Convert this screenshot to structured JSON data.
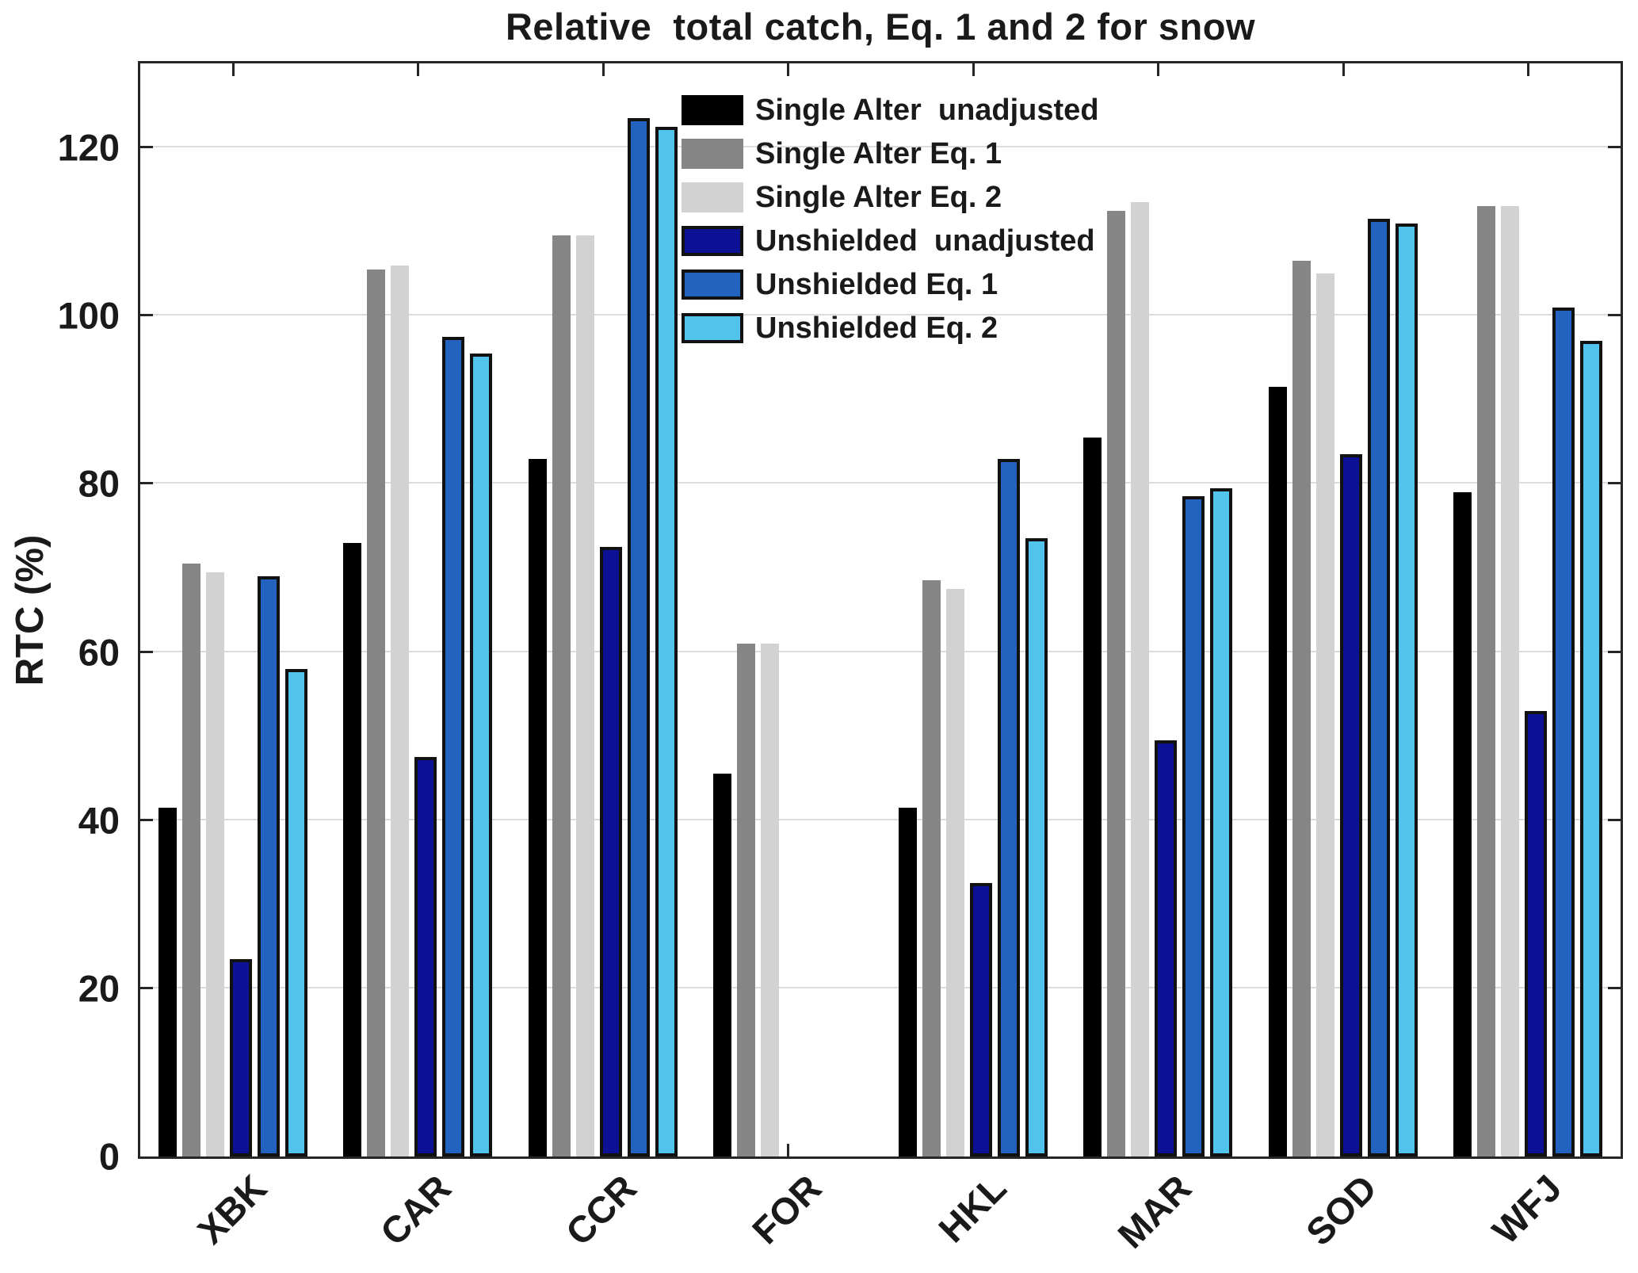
{
  "title": "Relative  total catch, Eq. 1 and 2 for snow",
  "colors": {
    "axis": "#262626",
    "grid": "#dcdcdc",
    "bar_edge": "#111111",
    "text": "#1a1a1a",
    "background": "#ffffff"
  },
  "chart_data": {
    "type": "bar",
    "title": "Relative  total catch, Eq. 1 and 2 for snow",
    "xlabel": "",
    "ylabel": "RTC (%)",
    "ylim": [
      0,
      130
    ],
    "yticks": [
      0,
      20,
      40,
      60,
      80,
      100,
      120
    ],
    "grid": "horizontal",
    "legend_position": "top-center-inside, no frame",
    "categories": [
      "XBK",
      "CAR",
      "CCR",
      "FOR",
      "HKL",
      "MAR",
      "SOD",
      "WFJ"
    ],
    "series": [
      {
        "name": "Single Alter  unadjusted",
        "color": "#000000",
        "edged": false,
        "values": [
          41.5,
          73,
          83,
          45.5,
          41.5,
          85.5,
          91.5,
          79
        ]
      },
      {
        "name": "Single Alter Eq. 1",
        "color": "#868686",
        "edged": false,
        "values": [
          70.5,
          105.5,
          109.5,
          61,
          68.5,
          112.5,
          106.5,
          113
        ]
      },
      {
        "name": "Single Alter Eq. 2",
        "color": "#d2d2d2",
        "edged": false,
        "values": [
          69.5,
          106,
          109.5,
          61,
          67.5,
          113.5,
          105,
          113
        ]
      },
      {
        "name": "Unshielded  unadjusted",
        "color": "#0c1196",
        "edged": true,
        "values": [
          23.5,
          47.5,
          72.5,
          null,
          32.5,
          49.5,
          83.5,
          53
        ]
      },
      {
        "name": "Unshielded Eq. 1",
        "color": "#2363c0",
        "edged": true,
        "values": [
          69,
          97.5,
          123.5,
          null,
          83,
          78.5,
          111.5,
          101
        ]
      },
      {
        "name": "Unshielded Eq. 2",
        "color": "#51c3ec",
        "edged": true,
        "values": [
          58,
          95.5,
          122.5,
          null,
          73.5,
          79.5,
          111,
          97
        ]
      }
    ]
  }
}
